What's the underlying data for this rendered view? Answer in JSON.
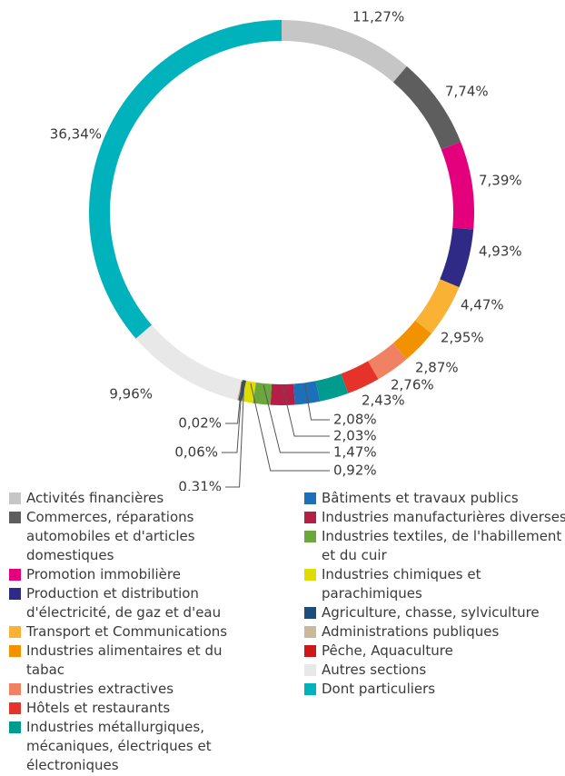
{
  "chart_data": {
    "type": "donut",
    "categories": [
      "Activités financières",
      "Commerces, réparations automobiles et d'articles domestiques",
      "Promotion immobilière",
      "Production et distribution d'électricité, de gaz et d'eau",
      "Transport et Communications",
      "Industries alimentaires et du tabac",
      "Industries extractives",
      "Hôtels et restaurants",
      "Industries métallurgiques, mécaniques, électriques et électroniques",
      "Bâtiments et travaux publics",
      "Industries manufacturières diverses",
      "Industries textiles, de l'habillement et du cuir",
      "Industries chimiques et parachimiques",
      "Agriculture, chasse, sylviculture",
      "Administrations publiques",
      "Pêche, Aquaculture",
      "Autres sections",
      "Dont particuliers"
    ],
    "values": [
      11.27,
      7.74,
      7.39,
      4.93,
      4.47,
      2.95,
      2.87,
      2.76,
      2.43,
      2.08,
      2.03,
      1.47,
      0.92,
      0.31,
      0.06,
      0.02,
      9.96,
      36.34
    ],
    "value_labels": [
      "11,27%",
      "7,74%",
      "7,39%",
      "4,93%",
      "4,47%",
      "2,95%",
      "2,87%",
      "2,76%",
      "2,43%",
      "2,08%",
      "2,03%",
      "1,47%",
      "0,92%",
      "0,31%",
      "0,06%",
      "0,02%",
      "9,96%",
      "36,34%"
    ],
    "colors": [
      "#c6c6c6",
      "#5e5e5e",
      "#e4007d",
      "#2e2a85",
      "#f9b233",
      "#f39200",
      "#f08263",
      "#e6332a",
      "#009b8f",
      "#1d70b7",
      "#b51e47",
      "#6aa83c",
      "#dedc00",
      "#1f4d7a",
      "#c9b99a",
      "#cc171b",
      "#e8e8e8",
      "#00b2bb"
    ]
  }
}
